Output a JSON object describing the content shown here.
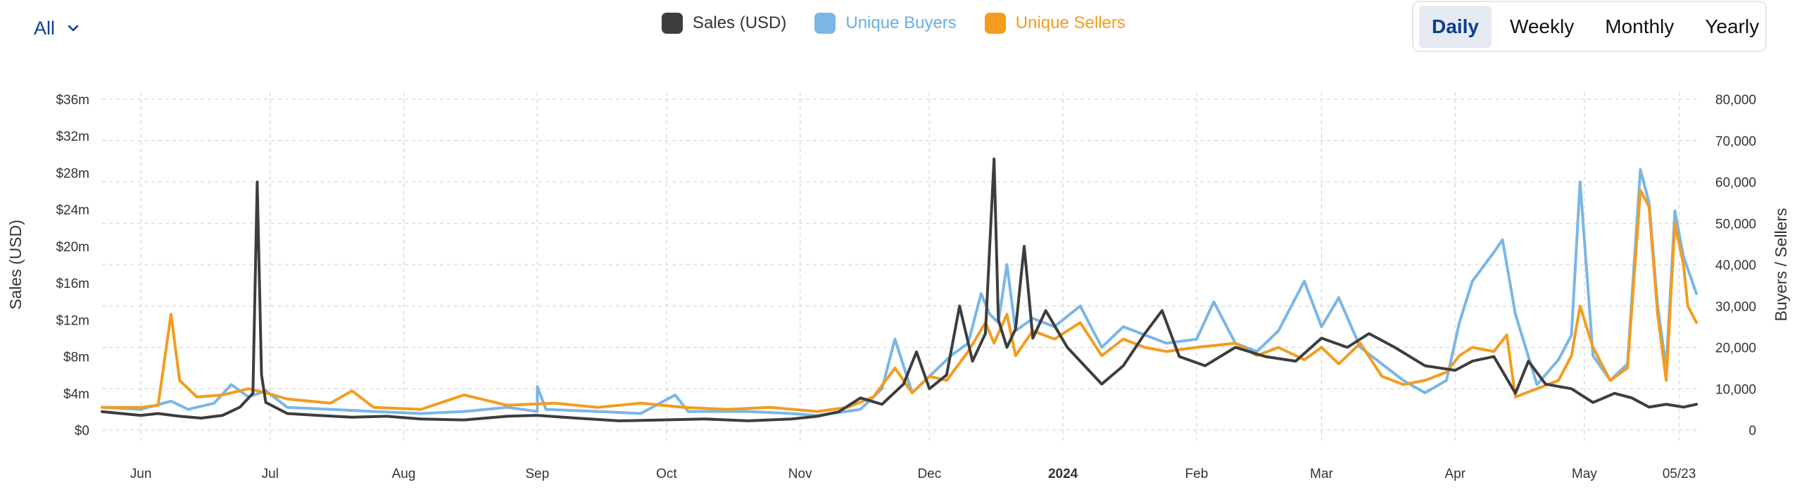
{
  "filter": {
    "label": "All"
  },
  "toggle": {
    "daily": "Daily",
    "weekly": "Weekly",
    "monthly": "Monthly",
    "yearly": "Yearly",
    "active": "daily"
  },
  "colors": {
    "sales": "#3d3d3d",
    "buyers": "#7ab6e6",
    "sellers": "#f39c1f",
    "grid": "#d6d6d6"
  },
  "chart_data": {
    "type": "line",
    "x_start": "2023-05-23",
    "x_end": "2024-05-27",
    "x_ticks": [
      {
        "date": "2023-06-01",
        "label": "Jun"
      },
      {
        "date": "2023-07-01",
        "label": "Jul"
      },
      {
        "date": "2023-08-01",
        "label": "Aug"
      },
      {
        "date": "2023-09-01",
        "label": "Sep"
      },
      {
        "date": "2023-10-01",
        "label": "Oct"
      },
      {
        "date": "2023-11-01",
        "label": "Nov"
      },
      {
        "date": "2023-12-01",
        "label": "Dec"
      },
      {
        "date": "2024-01-01",
        "label": "2024",
        "bold": true
      },
      {
        "date": "2024-02-01",
        "label": "Feb"
      },
      {
        "date": "2024-03-01",
        "label": "Mar"
      },
      {
        "date": "2024-04-01",
        "label": "Apr"
      },
      {
        "date": "2024-05-01",
        "label": "May"
      },
      {
        "date": "2024-05-23",
        "label": "05/23"
      }
    ],
    "y_left": {
      "label": "Sales (USD)",
      "min": 0,
      "max": 36,
      "ticks": [
        "$0",
        "$4m",
        "$8m",
        "$12m",
        "$16m",
        "$20m",
        "$24m",
        "$28m",
        "$32m",
        "$36m"
      ]
    },
    "y_right": {
      "label": "Buyers / Sellers",
      "min": 0,
      "max": 80000,
      "ticks": [
        "0",
        "10,000",
        "20,000",
        "30,000",
        "40,000",
        "50,000",
        "60,000",
        "70,000",
        "80,000"
      ]
    },
    "grid": true,
    "legend_position": "top-center",
    "series": [
      {
        "name": "Sales (USD)",
        "axis": "left",
        "unit": "$m",
        "points": [
          [
            "2023-05-23",
            2.0
          ],
          [
            "2023-06-01",
            1.6
          ],
          [
            "2023-06-05",
            1.8
          ],
          [
            "2023-06-10",
            1.5
          ],
          [
            "2023-06-15",
            1.3
          ],
          [
            "2023-06-20",
            1.6
          ],
          [
            "2023-06-24",
            2.5
          ],
          [
            "2023-06-27",
            4.0
          ],
          [
            "2023-06-28",
            27.0
          ],
          [
            "2023-06-29",
            6.0
          ],
          [
            "2023-06-30",
            3.0
          ],
          [
            "2023-07-05",
            1.8
          ],
          [
            "2023-07-12",
            1.6
          ],
          [
            "2023-07-20",
            1.4
          ],
          [
            "2023-07-28",
            1.5
          ],
          [
            "2023-08-05",
            1.2
          ],
          [
            "2023-08-15",
            1.1
          ],
          [
            "2023-08-25",
            1.5
          ],
          [
            "2023-09-01",
            1.6
          ],
          [
            "2023-09-10",
            1.3
          ],
          [
            "2023-09-20",
            1.0
          ],
          [
            "2023-09-30",
            1.1
          ],
          [
            "2023-10-10",
            1.2
          ],
          [
            "2023-10-20",
            1.0
          ],
          [
            "2023-10-30",
            1.2
          ],
          [
            "2023-11-05",
            1.5
          ],
          [
            "2023-11-10",
            2.0
          ],
          [
            "2023-11-15",
            3.5
          ],
          [
            "2023-11-20",
            2.8
          ],
          [
            "2023-11-25",
            5.0
          ],
          [
            "2023-11-28",
            8.5
          ],
          [
            "2023-12-01",
            4.5
          ],
          [
            "2023-12-05",
            6.0
          ],
          [
            "2023-12-08",
            13.5
          ],
          [
            "2023-12-11",
            7.5
          ],
          [
            "2023-12-14",
            10.5
          ],
          [
            "2023-12-16",
            29.5
          ],
          [
            "2023-12-17",
            12.0
          ],
          [
            "2023-12-19",
            9.0
          ],
          [
            "2023-12-21",
            11.0
          ],
          [
            "2023-12-23",
            20.0
          ],
          [
            "2023-12-25",
            10.0
          ],
          [
            "2023-12-28",
            13.0
          ],
          [
            "2024-01-02",
            9.0
          ],
          [
            "2024-01-06",
            7.0
          ],
          [
            "2024-01-10",
            5.0
          ],
          [
            "2024-01-15",
            7.0
          ],
          [
            "2024-01-20",
            10.5
          ],
          [
            "2024-01-24",
            13.0
          ],
          [
            "2024-01-28",
            8.0
          ],
          [
            "2024-02-03",
            7.0
          ],
          [
            "2024-02-10",
            9.0
          ],
          [
            "2024-02-17",
            8.0
          ],
          [
            "2024-02-24",
            7.5
          ],
          [
            "2024-03-01",
            10.0
          ],
          [
            "2024-03-07",
            9.0
          ],
          [
            "2024-03-12",
            10.5
          ],
          [
            "2024-03-18",
            9.0
          ],
          [
            "2024-03-25",
            7.0
          ],
          [
            "2024-04-01",
            6.5
          ],
          [
            "2024-04-05",
            7.5
          ],
          [
            "2024-04-10",
            8.0
          ],
          [
            "2024-04-15",
            4.0
          ],
          [
            "2024-04-18",
            7.5
          ],
          [
            "2024-04-22",
            5.0
          ],
          [
            "2024-04-28",
            4.5
          ],
          [
            "2024-05-03",
            3.0
          ],
          [
            "2024-05-08",
            4.0
          ],
          [
            "2024-05-12",
            3.5
          ],
          [
            "2024-05-16",
            2.5
          ],
          [
            "2024-05-20",
            2.8
          ],
          [
            "2024-05-24",
            2.5
          ],
          [
            "2024-05-27",
            2.8
          ]
        ]
      },
      {
        "name": "Unique Buyers",
        "axis": "right",
        "unit": "count",
        "points": [
          [
            "2023-05-23",
            5500
          ],
          [
            "2023-06-01",
            5000
          ],
          [
            "2023-06-08",
            7000
          ],
          [
            "2023-06-12",
            5000
          ],
          [
            "2023-06-18",
            6500
          ],
          [
            "2023-06-22",
            11000
          ],
          [
            "2023-06-26",
            8000
          ],
          [
            "2023-06-30",
            9500
          ],
          [
            "2023-07-05",
            5500
          ],
          [
            "2023-07-15",
            5000
          ],
          [
            "2023-07-25",
            4500
          ],
          [
            "2023-08-05",
            4000
          ],
          [
            "2023-08-15",
            4500
          ],
          [
            "2023-08-25",
            5500
          ],
          [
            "2023-09-01",
            4500
          ],
          [
            "2023-09-01",
            10500
          ],
          [
            "2023-09-03",
            5000
          ],
          [
            "2023-09-15",
            4500
          ],
          [
            "2023-09-25",
            4000
          ],
          [
            "2023-10-03",
            8500
          ],
          [
            "2023-10-06",
            4500
          ],
          [
            "2023-10-20",
            4500
          ],
          [
            "2023-10-30",
            4000
          ],
          [
            "2023-11-05",
            3500
          ],
          [
            "2023-11-15",
            5000
          ],
          [
            "2023-11-20",
            10000
          ],
          [
            "2023-11-23",
            22000
          ],
          [
            "2023-11-27",
            9000
          ],
          [
            "2023-12-02",
            14000
          ],
          [
            "2023-12-06",
            18000
          ],
          [
            "2023-12-10",
            21000
          ],
          [
            "2023-12-13",
            33000
          ],
          [
            "2023-12-15",
            28000
          ],
          [
            "2023-12-17",
            26000
          ],
          [
            "2023-12-19",
            40000
          ],
          [
            "2023-12-21",
            24000
          ],
          [
            "2023-12-25",
            27000
          ],
          [
            "2023-12-30",
            25000
          ],
          [
            "2024-01-05",
            30000
          ],
          [
            "2024-01-10",
            20000
          ],
          [
            "2024-01-15",
            25000
          ],
          [
            "2024-01-20",
            23000
          ],
          [
            "2024-01-25",
            21000
          ],
          [
            "2024-02-01",
            22000
          ],
          [
            "2024-02-05",
            31000
          ],
          [
            "2024-02-10",
            21000
          ],
          [
            "2024-02-15",
            19000
          ],
          [
            "2024-02-20",
            24000
          ],
          [
            "2024-02-26",
            36000
          ],
          [
            "2024-03-01",
            25000
          ],
          [
            "2024-03-05",
            32000
          ],
          [
            "2024-03-10",
            20000
          ],
          [
            "2024-03-15",
            16000
          ],
          [
            "2024-03-20",
            12000
          ],
          [
            "2024-03-25",
            9000
          ],
          [
            "2024-03-30",
            12000
          ],
          [
            "2024-04-02",
            26000
          ],
          [
            "2024-04-05",
            36000
          ],
          [
            "2024-04-10",
            43000
          ],
          [
            "2024-04-12",
            46000
          ],
          [
            "2024-04-15",
            28000
          ],
          [
            "2024-04-20",
            11000
          ],
          [
            "2024-04-25",
            17000
          ],
          [
            "2024-04-28",
            23000
          ],
          [
            "2024-04-30",
            60000
          ],
          [
            "2024-05-03",
            18000
          ],
          [
            "2024-05-07",
            12000
          ],
          [
            "2024-05-11",
            16000
          ],
          [
            "2024-05-14",
            63000
          ],
          [
            "2024-05-16",
            55000
          ],
          [
            "2024-05-18",
            30000
          ],
          [
            "2024-05-20",
            15000
          ],
          [
            "2024-05-22",
            53000
          ],
          [
            "2024-05-24",
            42000
          ],
          [
            "2024-05-27",
            33000
          ]
        ]
      },
      {
        "name": "Unique Sellers",
        "axis": "right",
        "unit": "count",
        "points": [
          [
            "2023-05-23",
            5500
          ],
          [
            "2023-06-01",
            5500
          ],
          [
            "2023-06-05",
            6000
          ],
          [
            "2023-06-08",
            28000
          ],
          [
            "2023-06-10",
            12000
          ],
          [
            "2023-06-14",
            8000
          ],
          [
            "2023-06-20",
            8500
          ],
          [
            "2023-06-26",
            10000
          ],
          [
            "2023-06-30",
            9000
          ],
          [
            "2023-07-05",
            7500
          ],
          [
            "2023-07-15",
            6500
          ],
          [
            "2023-07-20",
            9500
          ],
          [
            "2023-07-25",
            5500
          ],
          [
            "2023-08-05",
            5000
          ],
          [
            "2023-08-15",
            8500
          ],
          [
            "2023-08-25",
            6000
          ],
          [
            "2023-09-05",
            6500
          ],
          [
            "2023-09-15",
            5500
          ],
          [
            "2023-09-25",
            6500
          ],
          [
            "2023-10-05",
            5500
          ],
          [
            "2023-10-15",
            5000
          ],
          [
            "2023-10-25",
            5500
          ],
          [
            "2023-11-05",
            4500
          ],
          [
            "2023-11-12",
            5500
          ],
          [
            "2023-11-18",
            8000
          ],
          [
            "2023-11-23",
            15000
          ],
          [
            "2023-11-27",
            9000
          ],
          [
            "2023-12-01",
            13000
          ],
          [
            "2023-12-05",
            12000
          ],
          [
            "2023-12-10",
            19000
          ],
          [
            "2023-12-14",
            26000
          ],
          [
            "2023-12-16",
            21000
          ],
          [
            "2023-12-19",
            28000
          ],
          [
            "2023-12-21",
            18000
          ],
          [
            "2023-12-25",
            24000
          ],
          [
            "2023-12-30",
            22000
          ],
          [
            "2024-01-05",
            26000
          ],
          [
            "2024-01-10",
            18000
          ],
          [
            "2024-01-15",
            22000
          ],
          [
            "2024-01-20",
            20000
          ],
          [
            "2024-01-25",
            19000
          ],
          [
            "2024-02-01",
            20000
          ],
          [
            "2024-02-10",
            21000
          ],
          [
            "2024-02-15",
            18000
          ],
          [
            "2024-02-20",
            20000
          ],
          [
            "2024-02-26",
            17000
          ],
          [
            "2024-03-01",
            20000
          ],
          [
            "2024-03-05",
            16000
          ],
          [
            "2024-03-10",
            21000
          ],
          [
            "2024-03-15",
            13000
          ],
          [
            "2024-03-20",
            11000
          ],
          [
            "2024-03-25",
            12000
          ],
          [
            "2024-03-30",
            14000
          ],
          [
            "2024-04-02",
            18000
          ],
          [
            "2024-04-05",
            20000
          ],
          [
            "2024-04-10",
            19000
          ],
          [
            "2024-04-13",
            23000
          ],
          [
            "2024-04-15",
            8000
          ],
          [
            "2024-04-20",
            10000
          ],
          [
            "2024-04-25",
            12000
          ],
          [
            "2024-04-28",
            18000
          ],
          [
            "2024-04-30",
            30000
          ],
          [
            "2024-05-03",
            20000
          ],
          [
            "2024-05-07",
            12000
          ],
          [
            "2024-05-11",
            15000
          ],
          [
            "2024-05-14",
            58000
          ],
          [
            "2024-05-16",
            54000
          ],
          [
            "2024-05-18",
            28000
          ],
          [
            "2024-05-20",
            12000
          ],
          [
            "2024-05-22",
            50000
          ],
          [
            "2024-05-24",
            40000
          ],
          [
            "2024-05-25",
            30000
          ],
          [
            "2024-05-27",
            26000
          ]
        ]
      }
    ]
  }
}
